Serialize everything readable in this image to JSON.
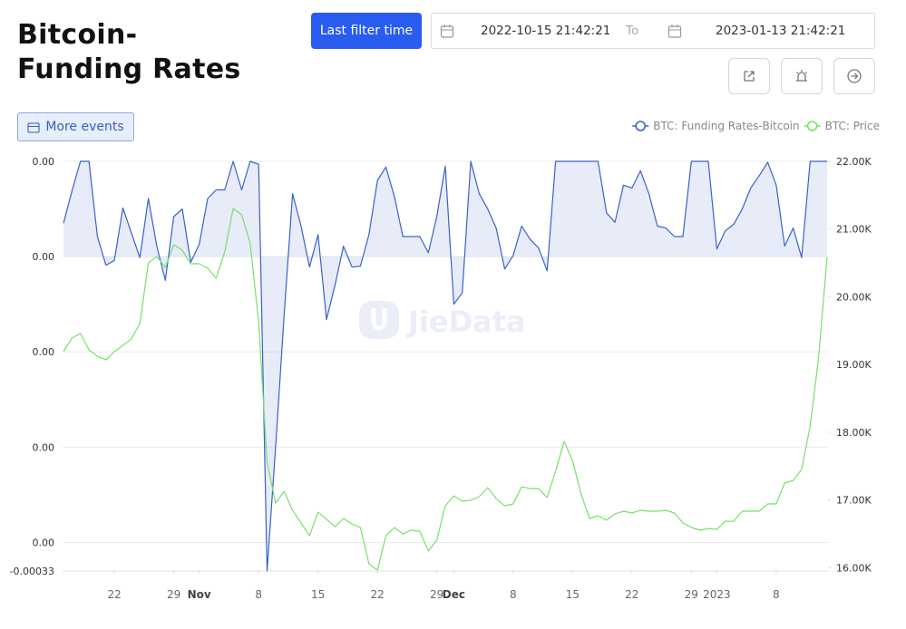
{
  "header": {
    "title": "Bitcoin-Funding Rates",
    "filter_button": "Last filter time",
    "start_date": "2022-10-15 21:42:21",
    "to": "To",
    "end_date": "2023-01-13 21:42:21",
    "events_button": "More events"
  },
  "watermark": "JieData",
  "chart_data": {
    "type": "line",
    "x": [
      "2022-10-16",
      "2022-10-17",
      "2022-10-18",
      "2022-10-19",
      "2022-10-20",
      "2022-10-21",
      "2022-10-22",
      "2022-10-23",
      "2022-10-24",
      "2022-10-25",
      "2022-10-26",
      "2022-10-27",
      "2022-10-28",
      "2022-10-29",
      "2022-10-30",
      "2022-10-31",
      "2022-11-01",
      "2022-11-02",
      "2022-11-03",
      "2022-11-04",
      "2022-11-05",
      "2022-11-06",
      "2022-11-07",
      "2022-11-08",
      "2022-11-09",
      "2022-11-10",
      "2022-11-11",
      "2022-11-12",
      "2022-11-13",
      "2022-11-14",
      "2022-11-15",
      "2022-11-16",
      "2022-11-17",
      "2022-11-18",
      "2022-11-19",
      "2022-11-20",
      "2022-11-21",
      "2022-11-22",
      "2022-11-23",
      "2022-11-24",
      "2022-11-25",
      "2022-11-26",
      "2022-11-27",
      "2022-11-28",
      "2022-11-29",
      "2022-11-30",
      "2022-12-01",
      "2022-12-02",
      "2022-12-03",
      "2022-12-04",
      "2022-12-05",
      "2022-12-06",
      "2022-12-07",
      "2022-12-08",
      "2022-12-09",
      "2022-12-10",
      "2022-12-11",
      "2022-12-12",
      "2022-12-13",
      "2022-12-14",
      "2022-12-15",
      "2022-12-16",
      "2022-12-17",
      "2022-12-18",
      "2022-12-19",
      "2022-12-20",
      "2022-12-21",
      "2022-12-22",
      "2022-12-23",
      "2022-12-24",
      "2022-12-25",
      "2022-12-26",
      "2022-12-27",
      "2022-12-28",
      "2022-12-29",
      "2022-12-30",
      "2022-12-31",
      "2023-01-01",
      "2023-01-02",
      "2023-01-03",
      "2023-01-04",
      "2023-01-05",
      "2023-01-06",
      "2023-01-07",
      "2023-01-08",
      "2023-01-09",
      "2023-01-10",
      "2023-01-11",
      "2023-01-12",
      "2023-01-13",
      "2023-01-14"
    ],
    "series": [
      {
        "name": "BTC: Funding Rates-Bitcoin",
        "color": "#3a62c8",
        "area": true,
        "values": [
          3.5e-05,
          6.9e-05,
          0.0001,
          0.0001,
          2.1e-05,
          -9e-06,
          -4e-06,
          5.1e-05,
          2.5e-05,
          -1e-06,
          6.1e-05,
          1.1e-05,
          -2.5e-05,
          4.2e-05,
          5e-05,
          -6e-06,
          1.3e-05,
          6.1e-05,
          7e-05,
          7e-05,
          0.0001,
          7e-05,
          0.0001,
          9.7e-05,
          -0.00033,
          -0.0002,
          -6.3e-05,
          6.6e-05,
          3.2e-05,
          -1.1e-05,
          2.3e-05,
          -6.6e-05,
          -3e-05,
          1.1e-05,
          -1.1e-05,
          -1e-05,
          2.3e-05,
          8e-05,
          9.4e-05,
          6.3e-05,
          2.1e-05,
          2.1e-05,
          2.1e-05,
          4e-06,
          4.2e-05,
          9.5e-05,
          -5e-05,
          -3.8e-05,
          0.0001,
          6.6e-05,
          5e-05,
          3e-05,
          -1.3e-05,
          1e-06,
          3.2e-05,
          1.8e-05,
          9e-06,
          -1.5e-05,
          0.0001,
          0.0001,
          0.0001,
          0.0001,
          0.0001,
          0.0001,
          4.6e-05,
          3.6e-05,
          7.5e-05,
          7.2e-05,
          9e-05,
          6.6e-05,
          3.2e-05,
          3e-05,
          2.1e-05,
          2.1e-05,
          0.0001,
          0.0001,
          0.0001,
          8e-06,
          2.7e-05,
          3.4e-05,
          5e-05,
          7.2e-05,
          8.5e-05,
          9.9e-05,
          7.5e-05,
          1.1e-05,
          3e-05,
          -1e-06,
          0.0001,
          0.0001,
          0.0001
        ]
      },
      {
        "name": "BTC: Price",
        "color": "#78e06a",
        "axis": "y2",
        "area": false,
        "values": [
          19189,
          19390,
          19457,
          19216,
          19122,
          19068,
          19189,
          19282,
          19376,
          19604,
          20501,
          20594,
          20434,
          20768,
          20688,
          20487,
          20487,
          20420,
          20273,
          20661,
          21304,
          21210,
          20795,
          19630,
          17556,
          16953,
          17127,
          16846,
          16659,
          16471,
          16819,
          16712,
          16605,
          16726,
          16645,
          16592,
          16056,
          15963,
          16471,
          16592,
          16498,
          16552,
          16538,
          16244,
          16404,
          16913,
          17060,
          16980,
          16993,
          17047,
          17181,
          17020,
          16913,
          16940,
          17194,
          17167,
          17167,
          17034,
          17422,
          17863,
          17582,
          17087,
          16726,
          16766,
          16699,
          16793,
          16833,
          16806,
          16846,
          16833,
          16833,
          16846,
          16806,
          16659,
          16592,
          16552,
          16578,
          16565,
          16685,
          16685,
          16833,
          16833,
          16833,
          16940,
          16940,
          17248,
          17288,
          17449,
          18091,
          19095,
          20581
        ]
      }
    ],
    "xticks": [
      {
        "value": "2022-10-22",
        "label": "22"
      },
      {
        "value": "2022-10-29",
        "label": "29"
      },
      {
        "value": "2022-11-01",
        "label": "Nov"
      },
      {
        "value": "2022-11-08",
        "label": "8"
      },
      {
        "value": "2022-11-15",
        "label": "15"
      },
      {
        "value": "2022-11-22",
        "label": "22"
      },
      {
        "value": "2022-11-29",
        "label": "29"
      },
      {
        "value": "2022-12-01",
        "label": "Dec"
      },
      {
        "value": "2022-12-08",
        "label": "8"
      },
      {
        "value": "2022-12-15",
        "label": "15"
      },
      {
        "value": "2022-12-22",
        "label": "22"
      },
      {
        "value": "2022-12-29",
        "label": "29"
      },
      {
        "value": "2023-01-01",
        "label": "2023"
      },
      {
        "value": "2023-01-08",
        "label": "8"
      }
    ],
    "ylim": [
      -0.00033,
      0.0001
    ],
    "yticks": [
      -0.00033,
      {
        "value": -0.0003,
        "label": "0.00"
      },
      {
        "value": -0.0002,
        "label": "0.00"
      },
      {
        "value": -0.0001,
        "label": "0.00"
      },
      {
        "value": 0,
        "label": "0.00"
      },
      {
        "value": 0.0001,
        "label": "0.00"
      }
    ],
    "y2lim": [
      15950,
      22000
    ],
    "y2ticks": [
      {
        "value": 16000,
        "label": "16.00K"
      },
      {
        "value": 17000,
        "label": "17.00K"
      },
      {
        "value": 18000,
        "label": "18.00K"
      },
      {
        "value": 19000,
        "label": "19.00K"
      },
      {
        "value": 20000,
        "label": "20.00K"
      },
      {
        "value": 21000,
        "label": "21.00K"
      },
      {
        "value": 22000,
        "label": "22.00K"
      }
    ],
    "grid": true,
    "legend": "top-right"
  }
}
